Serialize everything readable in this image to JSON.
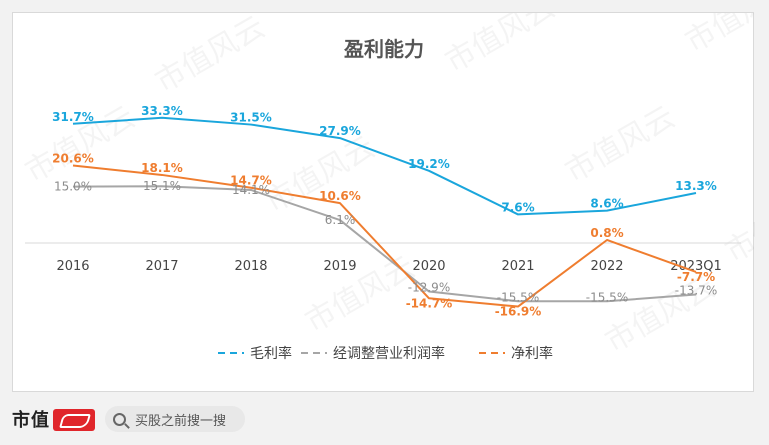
{
  "chart_data": {
    "type": "line",
    "title": "盈利能力",
    "categories": [
      "2016",
      "2017",
      "2018",
      "2019",
      "2020",
      "2021",
      "2022",
      "2023Q1"
    ],
    "series": [
      {
        "name": "毛利率",
        "color": "#1aa6dc",
        "values": [
          31.7,
          33.3,
          31.5,
          27.9,
          19.2,
          7.6,
          8.6,
          13.3
        ],
        "labels": [
          "31.7%",
          "33.3%",
          "31.5%",
          "27.9%",
          "19.2%",
          "7.6%",
          "8.6%",
          "13.3%"
        ]
      },
      {
        "name": "经调整营业利润率",
        "color": "#a6a6a6",
        "values": [
          15.0,
          15.1,
          14.1,
          6.1,
          -12.9,
          -15.5,
          -15.5,
          -13.7
        ],
        "labels": [
          "15.0%",
          "15.1%",
          "14.1%",
          "6.1%",
          "-12.9%",
          "-15.5%",
          "-15.5%",
          "-13.7%"
        ]
      },
      {
        "name": "净利率",
        "color": "#ef7d2f",
        "values": [
          20.6,
          18.1,
          14.7,
          10.6,
          -14.7,
          -16.9,
          0.8,
          -7.7
        ],
        "labels": [
          "20.6%",
          "18.1%",
          "14.7%",
          "10.6%",
          "-14.7%",
          "-16.9%",
          "0.8%",
          "-7.7%"
        ]
      }
    ],
    "legend": "bottom",
    "grid": false,
    "watermark": "市值风云"
  },
  "footer": {
    "brand": "市值",
    "search_placeholder": "买股之前搜一搜"
  }
}
